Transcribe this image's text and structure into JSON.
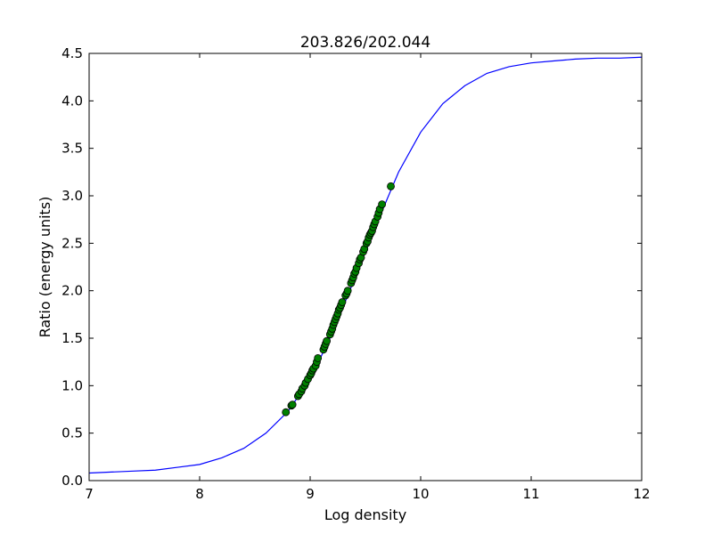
{
  "chart_data": {
    "type": "line+scatter",
    "title": "203.826/202.044",
    "xlabel": "Log density",
    "ylabel": "Ratio (energy units)",
    "xlim": [
      7,
      12
    ],
    "ylim": [
      0.0,
      4.5
    ],
    "xticks": [
      7,
      8,
      9,
      10,
      11,
      12
    ],
    "xtick_labels": [
      "7",
      "8",
      "9",
      "10",
      "11",
      "12"
    ],
    "yticks": [
      0.0,
      0.5,
      1.0,
      1.5,
      2.0,
      2.5,
      3.0,
      3.5,
      4.0,
      4.5
    ],
    "ytick_labels": [
      "0.0",
      "0.5",
      "1.0",
      "1.5",
      "2.0",
      "2.5",
      "3.0",
      "3.5",
      "4.0",
      "4.5"
    ],
    "grid": false,
    "legend": "none",
    "series": [
      {
        "kind": "line",
        "color": "#0000ff",
        "x": [
          7.0,
          7.2,
          7.4,
          7.6,
          7.8,
          8.0,
          8.2,
          8.4,
          8.6,
          8.8,
          9.0,
          9.2,
          9.4,
          9.6,
          9.8,
          10.0,
          10.2,
          10.4,
          10.6,
          10.8,
          11.0,
          11.2,
          11.4,
          11.6,
          11.8,
          12.0
        ],
        "y": [
          0.08,
          0.09,
          0.1,
          0.11,
          0.14,
          0.17,
          0.24,
          0.34,
          0.5,
          0.73,
          1.07,
          1.55,
          2.12,
          2.7,
          3.25,
          3.67,
          3.97,
          4.16,
          4.29,
          4.36,
          4.4,
          4.42,
          4.44,
          4.45,
          4.45,
          4.46
        ]
      },
      {
        "kind": "scatter",
        "color": "#008000",
        "x": [
          8.78,
          8.83,
          8.84,
          8.89,
          8.9,
          8.92,
          8.93,
          8.95,
          8.96,
          8.98,
          9.0,
          9.01,
          9.02,
          9.03,
          9.05,
          9.06,
          9.07,
          9.12,
          9.13,
          9.14,
          9.15,
          9.18,
          9.19,
          9.2,
          9.21,
          9.22,
          9.23,
          9.24,
          9.25,
          9.26,
          9.27,
          9.28,
          9.29,
          9.32,
          9.33,
          9.34,
          9.37,
          9.38,
          9.39,
          9.4,
          9.41,
          9.42,
          9.44,
          9.45,
          9.46,
          9.48,
          9.49,
          9.51,
          9.52,
          9.53,
          9.54,
          9.55,
          9.56,
          9.57,
          9.58,
          9.59,
          9.61,
          9.62,
          9.63,
          9.65,
          9.73
        ],
        "y": [
          0.72,
          0.79,
          0.8,
          0.89,
          0.91,
          0.94,
          0.97,
          1.0,
          1.03,
          1.07,
          1.11,
          1.13,
          1.16,
          1.18,
          1.21,
          1.25,
          1.29,
          1.38,
          1.41,
          1.44,
          1.47,
          1.54,
          1.57,
          1.6,
          1.64,
          1.67,
          1.7,
          1.73,
          1.76,
          1.8,
          1.82,
          1.85,
          1.88,
          1.95,
          1.97,
          2.0,
          2.08,
          2.11,
          2.14,
          2.18,
          2.2,
          2.24,
          2.29,
          2.33,
          2.35,
          2.41,
          2.44,
          2.5,
          2.52,
          2.56,
          2.59,
          2.61,
          2.63,
          2.67,
          2.7,
          2.73,
          2.78,
          2.82,
          2.86,
          2.91,
          3.1
        ]
      }
    ]
  }
}
